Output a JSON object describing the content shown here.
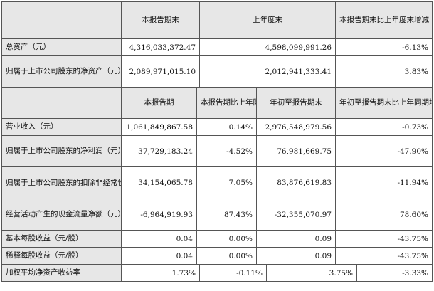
{
  "top_header": {
    "current_end": "本报告期末",
    "last_year_end": "上年度末",
    "change": "本报告期末比上年度末增减"
  },
  "top_rows": [
    {
      "label": "总资产（元）",
      "current": "4,316,033,372.47",
      "last": "4,598,099,991.26",
      "change": "-6.13%"
    },
    {
      "label": "归属于上市公司股东的净资产（元）",
      "current": "2,089,971,015.10",
      "last": "2,012,941,333.41",
      "change": "3.83%"
    }
  ],
  "second_header": {
    "period": "本报告期",
    "period_change": "本报告期比上年同期增减",
    "ytd": "年初至报告期末",
    "ytd_change": "年初至报告期末比上年同期增减"
  },
  "rows": [
    {
      "label": "营业收入（元）",
      "period": "1,061,849,867.58",
      "period_change": "0.14%",
      "ytd": "2,976,548,979.56",
      "ytd_change": "-0.73%"
    },
    {
      "label": "归属于上市公司股东的净利润（元）",
      "period": "37,729,183.24",
      "period_change": "-4.52%",
      "ytd": "76,981,669.75",
      "ytd_change": "-47.90%"
    },
    {
      "label": "归属于上市公司股东的扣除非经常性损益的净利润（元）",
      "period": "34,154,065.78",
      "period_change": "7.05%",
      "ytd": "83,876,619.83",
      "ytd_change": "-11.94%"
    },
    {
      "label": "经营活动产生的现金流量净额（元）",
      "period": "-6,964,919.93",
      "period_change": "87.43%",
      "ytd": "-32,355,070.97",
      "ytd_change": "78.60%"
    },
    {
      "label": "基本每股收益（元/股）",
      "period": "0.04",
      "period_change": "0.00%",
      "ytd": "0.09",
      "ytd_change": "-43.75%"
    },
    {
      "label": "稀释每股收益（元/股）",
      "period": "0.04",
      "period_change": "0.00%",
      "ytd": "0.09",
      "ytd_change": "-43.75%"
    },
    {
      "label": "加权平均净资产收益率",
      "period": "1.73%",
      "period_change": "-0.11%",
      "ytd": "3.75%",
      "ytd_change": "-3.33%"
    }
  ]
}
